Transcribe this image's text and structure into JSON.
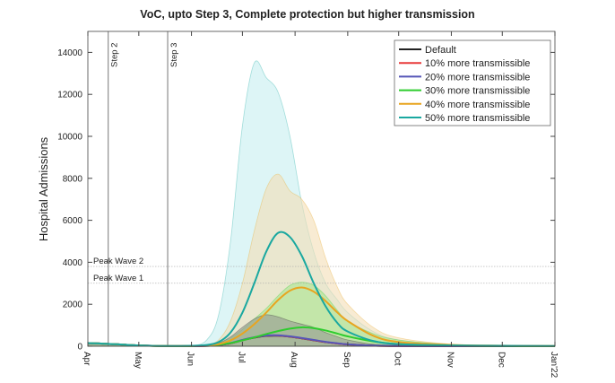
{
  "chart_data": {
    "type": "area",
    "title": "VoC, upto Step 3, Complete protection but higher transmission",
    "xlabel": "",
    "ylabel": "Hospital Admissions",
    "ylim": [
      0,
      15000
    ],
    "yticks": [
      0,
      2000,
      4000,
      6000,
      8000,
      10000,
      12000,
      14000
    ],
    "xlim_days_from_apr1": [
      0,
      275
    ],
    "xticks": [
      {
        "label": "Apr",
        "day": 0
      },
      {
        "label": "May",
        "day": 30
      },
      {
        "label": "Jun",
        "day": 61
      },
      {
        "label": "Jul",
        "day": 91
      },
      {
        "label": "Aug",
        "day": 122
      },
      {
        "label": "Sep",
        "day": 153
      },
      {
        "label": "Oct",
        "day": 183
      },
      {
        "label": "Nov",
        "day": 214
      },
      {
        "label": "Dec",
        "day": 244
      },
      {
        "label": "Jan'22",
        "day": 275
      }
    ],
    "vlines": [
      {
        "label": "Step 2",
        "day": 12
      },
      {
        "label": "Step 3",
        "day": 47
      }
    ],
    "hlines": [
      {
        "label": "Peak Wave 2",
        "value": 3800
      },
      {
        "label": "Peak Wave 1",
        "value": 3000
      }
    ],
    "legend_position": "top-right",
    "x_days": [
      0,
      10,
      20,
      30,
      45,
      61,
      70,
      77,
      84,
      91,
      98,
      105,
      112,
      119,
      126,
      133,
      140,
      147,
      153,
      168,
      183,
      214,
      244,
      275
    ],
    "series": [
      {
        "name": "Default",
        "color": "#222222",
        "fill": "#8f8f8f",
        "mean": [
          150,
          120,
          80,
          40,
          10,
          5,
          18,
          55,
          140,
          285,
          410,
          490,
          500,
          455,
          375,
          285,
          195,
          130,
          85,
          28,
          10,
          5,
          2,
          1
        ],
        "upper": [
          160,
          130,
          90,
          45,
          15,
          10,
          40,
          150,
          450,
          900,
          1300,
          1500,
          1400,
          1200,
          1050,
          900,
          650,
          450,
          300,
          100,
          40,
          10,
          5,
          2
        ]
      },
      {
        "name": "10% more transmissible",
        "color": "#e83a3a",
        "fill": null,
        "mean": [
          150,
          120,
          80,
          40,
          10,
          5,
          18,
          55,
          140,
          290,
          420,
          500,
          510,
          460,
          380,
          290,
          200,
          130,
          85,
          28,
          10,
          5,
          2,
          1
        ],
        "upper": null
      },
      {
        "name": "20% more transmissible",
        "color": "#5656b8",
        "fill": null,
        "mean": [
          150,
          120,
          80,
          40,
          10,
          5,
          20,
          60,
          150,
          300,
          430,
          510,
          520,
          470,
          390,
          300,
          210,
          140,
          90,
          30,
          10,
          5,
          2,
          1
        ],
        "upper": null
      },
      {
        "name": "30% more transmissible",
        "color": "#2ecc2e",
        "fill": "#a8e690",
        "mean": [
          150,
          120,
          80,
          40,
          10,
          10,
          30,
          70,
          150,
          280,
          420,
          580,
          720,
          840,
          900,
          860,
          750,
          600,
          470,
          230,
          100,
          30,
          10,
          5
        ],
        "upper": [
          160,
          130,
          90,
          45,
          15,
          15,
          50,
          150,
          400,
          800,
          1300,
          1800,
          2400,
          2900,
          3050,
          2900,
          2400,
          1700,
          1200,
          600,
          300,
          80,
          30,
          10
        ]
      },
      {
        "name": "40% more transmissible",
        "color": "#e8a520",
        "fill": "#f3ddb5",
        "mean": [
          150,
          120,
          80,
          40,
          10,
          15,
          40,
          100,
          280,
          600,
          1050,
          1600,
          2200,
          2650,
          2800,
          2600,
          2150,
          1600,
          1200,
          500,
          200,
          60,
          25,
          10
        ],
        "upper": [
          160,
          130,
          90,
          45,
          15,
          20,
          80,
          300,
          1200,
          3000,
          5500,
          7500,
          8200,
          7400,
          7000,
          6000,
          4200,
          2800,
          2000,
          900,
          400,
          100,
          40,
          10
        ]
      },
      {
        "name": "50% more transmissible",
        "color": "#1aa8a0",
        "fill": "#c6eef0",
        "mean": [
          150,
          120,
          80,
          40,
          10,
          20,
          60,
          200,
          650,
          1600,
          3000,
          4500,
          5400,
          5200,
          4300,
          3000,
          1900,
          1100,
          700,
          250,
          100,
          40,
          20,
          10
        ],
        "upper": [
          160,
          130,
          90,
          45,
          15,
          30,
          300,
          1500,
          5000,
          10500,
          13500,
          12800,
          12100,
          10000,
          6800,
          4500,
          3000,
          2200,
          1600,
          700,
          300,
          80,
          30,
          10
        ]
      }
    ]
  }
}
